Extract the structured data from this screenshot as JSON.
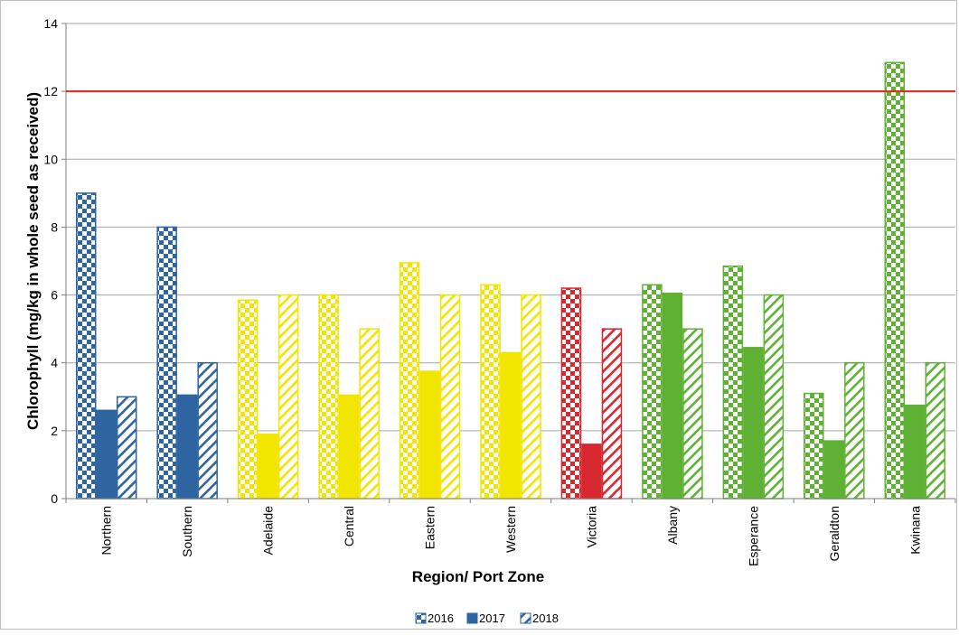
{
  "chart_data": {
    "type": "bar",
    "title": "",
    "xlabel": "Region/ Port Zone",
    "ylabel": "Chlorophyll (mg/kg in whole seed as received)",
    "ylim": [
      0,
      14
    ],
    "yticks": [
      0,
      2,
      4,
      6,
      8,
      10,
      12,
      14
    ],
    "grid": true,
    "legend_position": "bottom",
    "reference_line": {
      "value": 12,
      "color": "#e2231a"
    },
    "categories": [
      "Northern",
      "Southern",
      "Adelaide",
      "Central",
      "Eastern",
      "Western",
      "Victoria",
      "Albany",
      "Esperance",
      "Geraldton",
      "Kwinana"
    ],
    "category_colors": [
      "#2e64a0",
      "#2e64a0",
      "#f2e500",
      "#f2e500",
      "#f2e500",
      "#f2e500",
      "#d7272f",
      "#5fb134",
      "#5fb134",
      "#5fb134",
      "#5fb134"
    ],
    "series": [
      {
        "name": "2016",
        "pattern": "checker",
        "values": [
          9.0,
          8.0,
          5.85,
          6.0,
          6.95,
          6.3,
          6.2,
          6.3,
          6.85,
          3.1,
          12.85
        ]
      },
      {
        "name": "2017",
        "pattern": "solid",
        "values": [
          2.6,
          3.05,
          1.9,
          3.05,
          3.75,
          4.3,
          1.6,
          6.05,
          4.45,
          1.7,
          2.75
        ]
      },
      {
        "name": "2018",
        "pattern": "hatch",
        "values": [
          3.0,
          4.0,
          6.0,
          5.0,
          6.0,
          6.0,
          5.0,
          5.0,
          6.0,
          4.0,
          4.0
        ]
      }
    ]
  }
}
